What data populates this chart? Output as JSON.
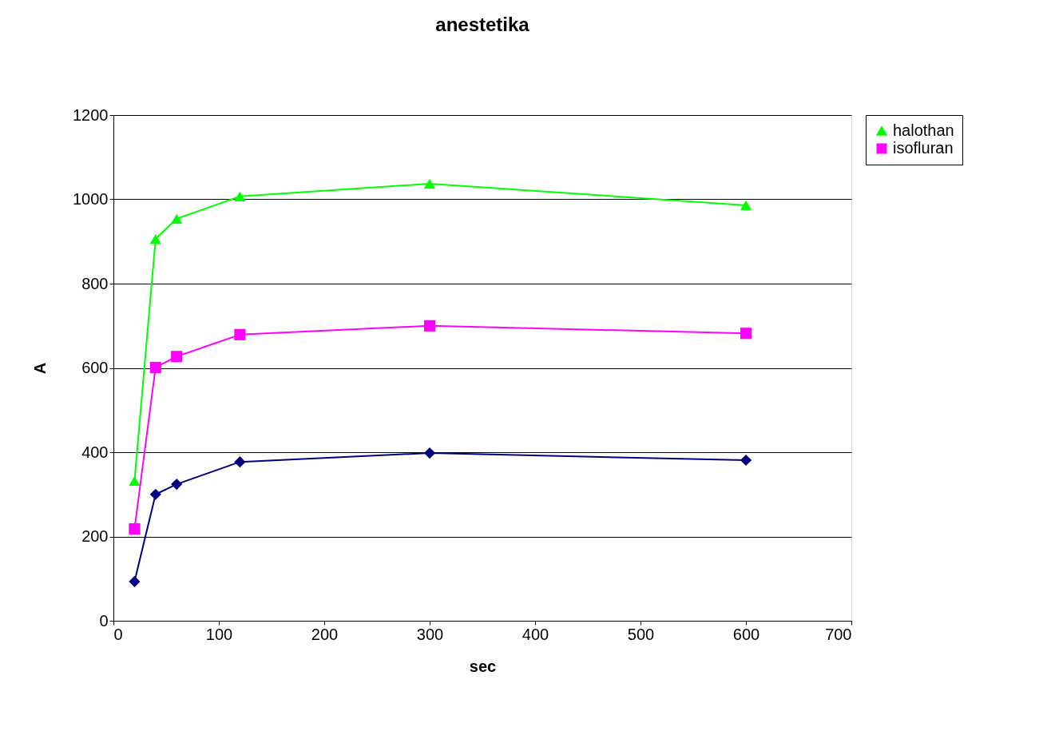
{
  "chart_data": {
    "type": "line",
    "title": "anestetika",
    "xlabel": "sec",
    "ylabel": "A",
    "x": [
      20,
      40,
      60,
      120,
      300,
      600
    ],
    "series": [
      {
        "name": "halothan",
        "color": "#00ff00",
        "marker": "triangle",
        "values": [
          332,
          906,
          954,
          1007,
          1037,
          986
        ]
      },
      {
        "name": "isofluran",
        "color": "#ff00ff",
        "marker": "square",
        "values": [
          218,
          601,
          627,
          679,
          700,
          682
        ]
      },
      {
        "color": "#000080",
        "marker": "diamond",
        "values": [
          93,
          300,
          324,
          377,
          398,
          381
        ]
      }
    ],
    "xlim": [
      0,
      700
    ],
    "xticks": [
      0,
      100,
      200,
      300,
      400,
      500,
      600,
      700
    ],
    "ylim": [
      0,
      1200
    ],
    "yticks": [
      0,
      200,
      400,
      600,
      800,
      1000,
      1200
    ],
    "grid": "y",
    "legend": "right",
    "line_style": "solid"
  }
}
